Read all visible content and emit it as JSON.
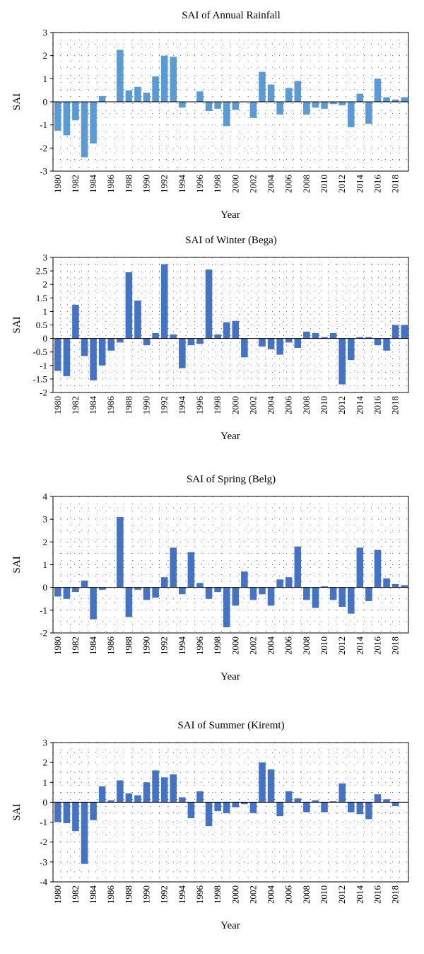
{
  "chart_data": [
    {
      "type": "bar",
      "title": "SAI of Annual Rainfall",
      "xlabel": "Year",
      "ylabel": "SAI",
      "ylim": [
        -3,
        3
      ],
      "yticks": [
        -3,
        -2,
        -1,
        0,
        1,
        2,
        3
      ],
      "ytick_labels": [
        "-3",
        "-2",
        "-1",
        "0",
        "1",
        "2",
        "3"
      ],
      "xtick_labels": [
        "1980",
        "1982",
        "1984",
        "1986",
        "1988",
        "1990",
        "1992",
        "1994",
        "1996",
        "1998",
        "2000",
        "2002",
        "2004",
        "2006",
        "2008",
        "2010",
        "2012",
        "2014",
        "2016",
        "2018"
      ],
      "bar_color": "#5b9bd5",
      "grid": "dotted",
      "categories": [
        "1980",
        "1981",
        "1982",
        "1983",
        "1984",
        "1985",
        "1986",
        "1987",
        "1988",
        "1989",
        "1990",
        "1991",
        "1992",
        "1993",
        "1994",
        "1995",
        "1996",
        "1997",
        "1998",
        "1999",
        "2000",
        "2001",
        "2002",
        "2003",
        "2004",
        "2005",
        "2006",
        "2007",
        "2008",
        "2009",
        "2010",
        "2011",
        "2012",
        "2013",
        "2014",
        "2015",
        "2016",
        "2017",
        "2018",
        "2019"
      ],
      "values": [
        -1.25,
        -1.45,
        -0.8,
        -2.4,
        -1.8,
        0.25,
        0,
        2.25,
        0.5,
        0.65,
        0.4,
        1.1,
        2.0,
        1.95,
        -0.25,
        0,
        0.45,
        -0.4,
        -0.3,
        -1.05,
        -0.35,
        0,
        -0.7,
        1.3,
        0.75,
        -0.55,
        0.6,
        0.9,
        -0.55,
        -0.25,
        -0.3,
        -0.1,
        -0.15,
        -1.1,
        0.35,
        -0.95,
        1.0,
        0.2,
        0.1,
        0.2
      ]
    },
    {
      "type": "bar",
      "title": "SAI of Winter (Bega)",
      "xlabel": "Year",
      "ylabel": "SAI",
      "ylim": [
        -2,
        3
      ],
      "yticks": [
        -2,
        -1.5,
        -1,
        -0.5,
        0,
        0.5,
        1,
        1.5,
        2,
        2.5,
        3
      ],
      "ytick_labels": [
        "-2",
        "-1.5",
        "-1",
        "-0.5",
        "0",
        "0.5",
        "1",
        "1.5",
        "2",
        "2.5",
        "3"
      ],
      "xtick_labels": [
        "1980",
        "1982",
        "1984",
        "1986",
        "1988",
        "1990",
        "1992",
        "1994",
        "1996",
        "1998",
        "2000",
        "2002",
        "2004",
        "2006",
        "2008",
        "2010",
        "2012",
        "2014",
        "2016",
        "2018"
      ],
      "bar_color": "#4472c4",
      "grid": "dotted",
      "categories": [
        "1980",
        "1981",
        "1982",
        "1983",
        "1984",
        "1985",
        "1986",
        "1987",
        "1988",
        "1989",
        "1990",
        "1991",
        "1992",
        "1993",
        "1994",
        "1995",
        "1996",
        "1997",
        "1998",
        "1999",
        "2000",
        "2001",
        "2002",
        "2003",
        "2004",
        "2005",
        "2006",
        "2007",
        "2008",
        "2009",
        "2010",
        "2011",
        "2012",
        "2013",
        "2014",
        "2015",
        "2016",
        "2017",
        "2018",
        "2019"
      ],
      "values": [
        -1.2,
        -1.4,
        1.25,
        -0.65,
        -1.55,
        -1.0,
        -0.45,
        -0.15,
        2.45,
        1.4,
        -0.25,
        0.2,
        2.75,
        0.15,
        -1.1,
        -0.25,
        -0.2,
        2.55,
        0.15,
        0.6,
        0.65,
        -0.7,
        0,
        -0.3,
        -0.4,
        -0.6,
        -0.15,
        -0.35,
        0.25,
        0.2,
        0.05,
        0.2,
        -1.7,
        -0.8,
        0.05,
        0.05,
        -0.25,
        -0.45,
        0.5,
        0.5
      ]
    },
    {
      "type": "bar",
      "title": "SAI of Spring (Belg)",
      "xlabel": "Year",
      "ylabel": "SAI",
      "ylim": [
        -2,
        4
      ],
      "yticks": [
        -2,
        -1,
        0,
        1,
        2,
        3,
        4
      ],
      "ytick_labels": [
        "-2",
        "-1",
        "0",
        "1",
        "2",
        "3",
        "4"
      ],
      "xtick_labels": [
        "1980",
        "1982",
        "1984",
        "1986",
        "1988",
        "1990",
        "1992",
        "1994",
        "1996",
        "1998",
        "2000",
        "2002",
        "2004",
        "2006",
        "2008",
        "2010",
        "2012",
        "2014",
        "2016",
        "2018"
      ],
      "bar_color": "#4472c4",
      "grid": "dotted",
      "categories": [
        "1980",
        "1981",
        "1982",
        "1983",
        "1984",
        "1985",
        "1986",
        "1987",
        "1988",
        "1989",
        "1990",
        "1991",
        "1992",
        "1993",
        "1994",
        "1995",
        "1996",
        "1997",
        "1998",
        "1999",
        "2000",
        "2001",
        "2002",
        "2003",
        "2004",
        "2005",
        "2006",
        "2007",
        "2008",
        "2009",
        "2010",
        "2011",
        "2012",
        "2013",
        "2014",
        "2015",
        "2016",
        "2017",
        "2018",
        "2019"
      ],
      "values": [
        -0.4,
        -0.5,
        -0.2,
        0.3,
        -1.4,
        -0.1,
        0,
        3.1,
        -1.3,
        -0.1,
        -0.55,
        -0.45,
        0.45,
        1.75,
        -0.3,
        1.55,
        0.2,
        -0.5,
        -0.2,
        -1.75,
        -0.8,
        0.7,
        -0.55,
        -0.3,
        -0.8,
        0.35,
        0.45,
        1.8,
        -0.55,
        -0.9,
        0.05,
        -0.55,
        -0.85,
        -1.15,
        1.75,
        -0.6,
        1.65,
        0.4,
        0.15,
        0.1
      ]
    },
    {
      "type": "bar",
      "title": "SAI of Summer (Kiremt)",
      "xlabel": "Year",
      "ylabel": "SAI",
      "ylim": [
        -4,
        3
      ],
      "yticks": [
        -4,
        -3,
        -2,
        -1,
        0,
        1,
        2,
        3
      ],
      "ytick_labels": [
        "-4",
        "-3",
        "-2",
        "-1",
        "0",
        "1",
        "2",
        "3"
      ],
      "xtick_labels": [
        "1980",
        "1982",
        "1984",
        "1986",
        "1988",
        "1990",
        "1992",
        "1994",
        "1996",
        "1998",
        "2000",
        "2002",
        "2004",
        "2006",
        "2008",
        "2010",
        "2012",
        "2014",
        "2016",
        "2018"
      ],
      "bar_color": "#4472c4",
      "grid": "dotted",
      "categories": [
        "1980",
        "1981",
        "1982",
        "1983",
        "1984",
        "1985",
        "1986",
        "1987",
        "1988",
        "1989",
        "1990",
        "1991",
        "1992",
        "1993",
        "1994",
        "1995",
        "1996",
        "1997",
        "1998",
        "1999",
        "2000",
        "2001",
        "2002",
        "2003",
        "2004",
        "2005",
        "2006",
        "2007",
        "2008",
        "2009",
        "2010",
        "2011",
        "2012",
        "2013",
        "2014",
        "2015",
        "2016",
        "2017",
        "2018",
        "2019"
      ],
      "values": [
        -1.0,
        -1.05,
        -1.45,
        -3.1,
        -0.9,
        0.8,
        0.1,
        1.1,
        0.45,
        0.35,
        1.0,
        1.6,
        1.25,
        1.4,
        0.25,
        -0.8,
        0.55,
        -1.2,
        -0.45,
        -0.55,
        -0.25,
        -0.1,
        -0.55,
        2.0,
        1.65,
        -0.7,
        0.55,
        0.2,
        -0.5,
        0.1,
        -0.5,
        0.05,
        0.95,
        -0.5,
        -0.6,
        -0.85,
        0.4,
        0.15,
        -0.2,
        0
      ]
    }
  ]
}
